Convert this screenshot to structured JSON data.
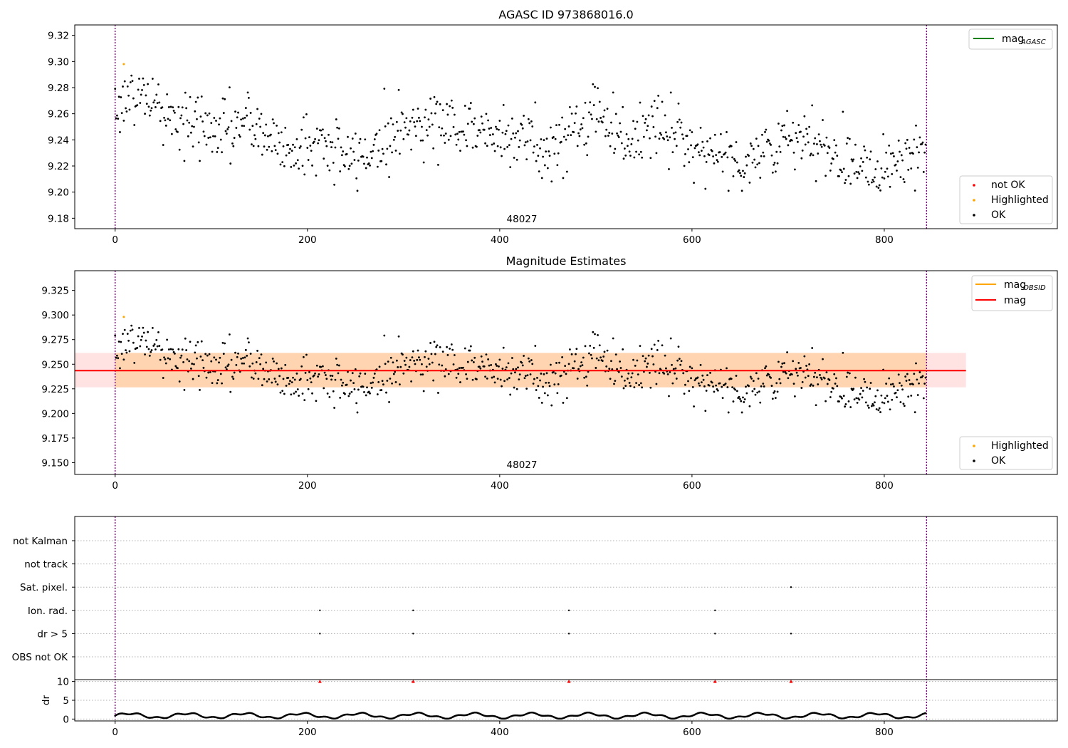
{
  "colors": {
    "ok": "#000000",
    "highlighted": "#ffa500",
    "not_ok": "#ff0000",
    "mag_agasc": "#008000",
    "mag_obsid": "#ffa500",
    "mag": "#ff0000",
    "obsid_band": "#ff0000",
    "mag_band": "#ffa500",
    "obsid_marker": "#800080"
  },
  "panel1": {
    "title": "AGASC ID 973868016.0",
    "obsid_label": "48027",
    "legend_line": {
      "label": "mag",
      "sub": "AGASC"
    },
    "legend_points": [
      "not OK",
      "Highlighted",
      "OK"
    ]
  },
  "panel2": {
    "title": "Magnitude Estimates",
    "obsid_label": "48027",
    "legend_lines": [
      {
        "label": "mag",
        "sub": "OBSID"
      },
      {
        "label": "mag",
        "sub": ""
      }
    ],
    "legend_points": [
      "Highlighted",
      "OK"
    ]
  },
  "panel3": {
    "flag_labels": [
      "not Kalman",
      "not track",
      "Sat. pixel.",
      "Ion. rad.",
      "dr > 5",
      "OBS not OK"
    ],
    "dr_label": "dr"
  },
  "chart_data": [
    {
      "type": "scatter",
      "title": "AGASC ID 973868016.0",
      "xlim": [
        -42,
        980
      ],
      "ylim": [
        9.172,
        9.328
      ],
      "x_ticks": [
        "0",
        "200",
        "400",
        "600",
        "800"
      ],
      "y_ticks": [
        "9.18",
        "9.20",
        "9.22",
        "9.24",
        "9.26",
        "9.28",
        "9.30",
        "9.32"
      ],
      "obsid_boundaries": [
        0,
        844
      ],
      "n_points": 844,
      "trend": {
        "x": [
          0,
          30,
          60,
          100,
          140,
          180,
          210,
          250,
          290,
          330,
          370,
          410,
          450,
          480,
          500,
          540,
          560,
          600,
          650,
          700,
          750,
          790,
          830,
          844
        ],
        "y": [
          9.268,
          9.275,
          9.255,
          9.248,
          9.252,
          9.232,
          9.238,
          9.224,
          9.246,
          9.256,
          9.248,
          9.245,
          9.232,
          9.248,
          9.262,
          9.238,
          9.252,
          9.238,
          9.222,
          9.24,
          9.23,
          9.218,
          9.232,
          9.232
        ]
      },
      "scatter_sd": 0.012,
      "highlighted_points": [
        {
          "x": 9,
          "y": 9.298
        }
      ],
      "grid": false,
      "legend": [
        "mag_AGASC",
        "not OK",
        "Highlighted",
        "OK"
      ]
    },
    {
      "type": "scatter",
      "title": "Magnitude Estimates",
      "xlim": [
        -42,
        980
      ],
      "ylim": [
        9.138,
        9.345
      ],
      "x_ticks": [
        "0",
        "200",
        "400",
        "600",
        "800"
      ],
      "y_ticks": [
        "9.150",
        "9.175",
        "9.200",
        "9.225",
        "9.250",
        "9.275",
        "9.300",
        "9.325"
      ],
      "mag": 9.2435,
      "mag_band": [
        9.2265,
        9.2615
      ],
      "mag_band_x": [
        0,
        844
      ],
      "mag_obsid_band": [
        9.2265,
        9.2615
      ],
      "mag_obsid_band_x": [
        -42,
        885
      ],
      "highlighted_points": [
        {
          "x": 9,
          "y": 9.298
        }
      ],
      "grid": false,
      "legend": [
        "mag_OBSID",
        "mag",
        "Highlighted",
        "OK"
      ]
    },
    {
      "type": "scatter",
      "title": "",
      "xlim": [
        -42,
        980
      ],
      "x_ticks": [
        "0",
        "200",
        "400",
        "600",
        "800"
      ],
      "flag_rows": [
        "not Kalman",
        "not track",
        "Sat. pixel.",
        "Ion. rad.",
        "dr > 5",
        "OBS not OK"
      ],
      "flag_points": {
        "Sat. pixel.": [
          703
        ],
        "Ion. rad.": [
          213,
          310,
          472,
          624
        ],
        "dr > 5": [
          213,
          310,
          472,
          624,
          703
        ]
      },
      "dr_ylim": [
        -0.5,
        10.5
      ],
      "dr_ticks": [
        "0",
        "5",
        "10"
      ],
      "dr_clipped_points": [
        213,
        310,
        472,
        624,
        703
      ],
      "dr_typical": [
        0,
        2
      ]
    }
  ]
}
